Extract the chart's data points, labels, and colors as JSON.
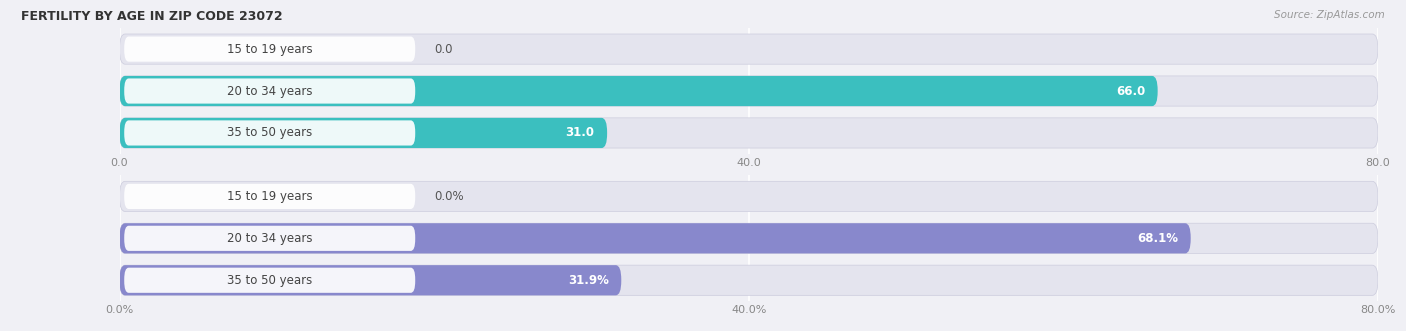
{
  "title": "FERTILITY BY AGE IN ZIP CODE 23072",
  "source": "Source: ZipAtlas.com",
  "top_chart": {
    "categories": [
      "15 to 19 years",
      "20 to 34 years",
      "35 to 50 years"
    ],
    "values": [
      0.0,
      66.0,
      31.0
    ],
    "bar_color": "#3bbfbf",
    "xlim": [
      0,
      80
    ],
    "xticks": [
      0.0,
      40.0,
      80.0
    ],
    "xtick_labels": [
      "0.0",
      "40.0",
      "80.0"
    ],
    "value_labels": [
      "0.0",
      "66.0",
      "31.0"
    ]
  },
  "bottom_chart": {
    "categories": [
      "15 to 19 years",
      "20 to 34 years",
      "35 to 50 years"
    ],
    "values": [
      0.0,
      68.1,
      31.9
    ],
    "bar_color": "#8888cc",
    "xlim": [
      0,
      80
    ],
    "xticks": [
      0.0,
      40.0,
      80.0
    ],
    "xtick_labels": [
      "0.0%",
      "40.0%",
      "80.0%"
    ],
    "value_labels": [
      "0.0%",
      "68.1%",
      "31.9%"
    ]
  },
  "fig_bg_color": "#f0f0f5",
  "bar_bg_color": "#e4e4ee",
  "label_pill_color": "#ffffff",
  "label_text_color": "#444444",
  "title_color": "#333333",
  "source_color": "#999999",
  "value_label_color_inside": "#ffffff",
  "value_label_color_outside": "#555555",
  "grid_color": "#ffffff",
  "tick_color": "#888888"
}
